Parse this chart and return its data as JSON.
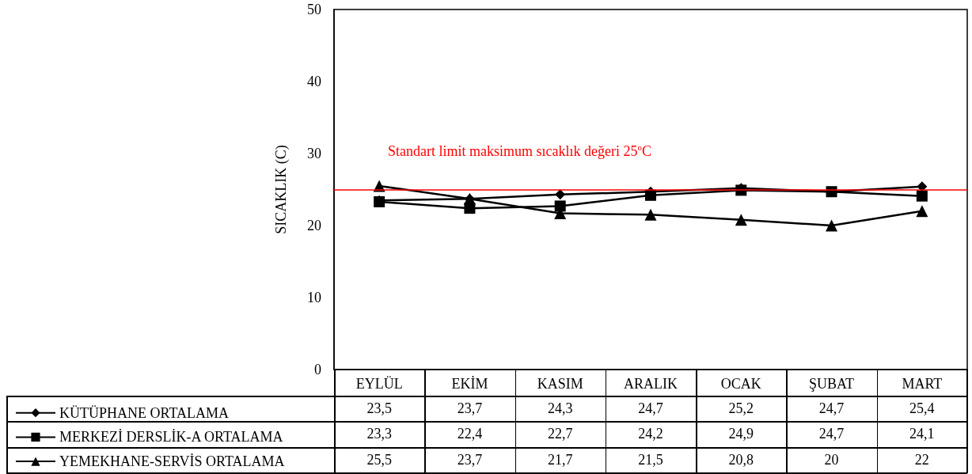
{
  "chart_data": {
    "type": "line",
    "ylabel": "SICAKLIK (C)",
    "categories": [
      "EYLÜL",
      "EKİM",
      "KASIM",
      "ARALIK",
      "OCAK",
      "ŞUBAT",
      "MART"
    ],
    "series": [
      {
        "name": "KÜTÜPHANE ORTALAMA",
        "color": "#000000",
        "marker": "diamond",
        "values": [
          23.5,
          23.7,
          24.3,
          24.7,
          25.2,
          24.7,
          25.4
        ],
        "value_labels": [
          "23,5",
          "23,7",
          "24,3",
          "24,7",
          "25,2",
          "24,7",
          "25,4"
        ]
      },
      {
        "name": "MERKEZİ DERSLİK-A ORTALAMA",
        "color": "#000000",
        "marker": "square",
        "values": [
          23.3,
          22.4,
          22.7,
          24.2,
          24.9,
          24.7,
          24.1
        ],
        "value_labels": [
          "23,3",
          "22,4",
          "22,7",
          "24,2",
          "24,9",
          "24,7",
          "24,1"
        ]
      },
      {
        "name": "YEMEKHANE-SERVİS ORTALAMA",
        "color": "#000000",
        "marker": "triangle",
        "values": [
          25.5,
          23.7,
          21.7,
          21.5,
          20.8,
          20,
          22
        ],
        "value_labels": [
          "25,5",
          "23,7",
          "21,7",
          "21,5",
          "20,8",
          "20",
          "22"
        ]
      }
    ],
    "ylim": [
      0,
      50
    ],
    "yticks": [
      0,
      10,
      20,
      30,
      40,
      50
    ],
    "grid": false,
    "legend": "bottom left",
    "ref_lines": [
      {
        "axis": "y",
        "value": 25,
        "label": "Standart limit maksimum sıcaklık değeri 25$^{o}$C",
        "color": "#ff0000"
      }
    ]
  }
}
